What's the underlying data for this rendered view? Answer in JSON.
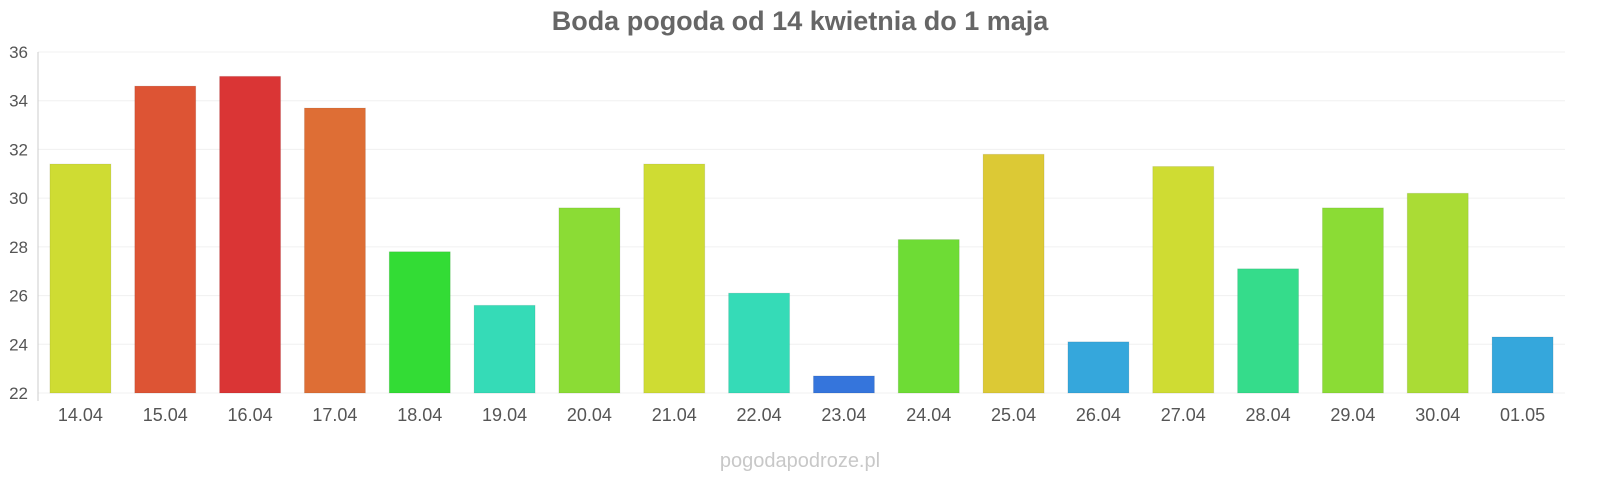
{
  "chart_data": {
    "type": "bar",
    "title": "Boda pogoda od 14 kwietnia do 1 maja",
    "xlabel": "",
    "ylabel": "",
    "ylim": [
      22,
      36
    ],
    "yticks": [
      22,
      24,
      26,
      28,
      30,
      32,
      34,
      36
    ],
    "categories": [
      "14.04",
      "15.04",
      "16.04",
      "17.04",
      "18.04",
      "19.04",
      "20.04",
      "21.04",
      "22.04",
      "23.04",
      "24.04",
      "25.04",
      "26.04",
      "27.04",
      "28.04",
      "29.04",
      "30.04",
      "01.05"
    ],
    "values": [
      31.4,
      34.6,
      35.0,
      33.7,
      27.8,
      25.6,
      29.6,
      31.4,
      26.1,
      22.7,
      28.3,
      31.8,
      24.1,
      31.3,
      27.1,
      29.6,
      30.2,
      24.3
    ],
    "colors": [
      "#cfdc33",
      "#dd5434",
      "#da3535",
      "#de6e35",
      "#33dc35",
      "#35dbb7",
      "#8bdc35",
      "#cfdc33",
      "#35dbb7",
      "#3575dc",
      "#6edc35",
      "#dcc935",
      "#35a7dc",
      "#cfdc33",
      "#35dc8b",
      "#8bdc35",
      "#aadc35",
      "#35a7dc"
    ],
    "grid": true,
    "legend": "none"
  },
  "watermark": "pogodapodroze.pl"
}
